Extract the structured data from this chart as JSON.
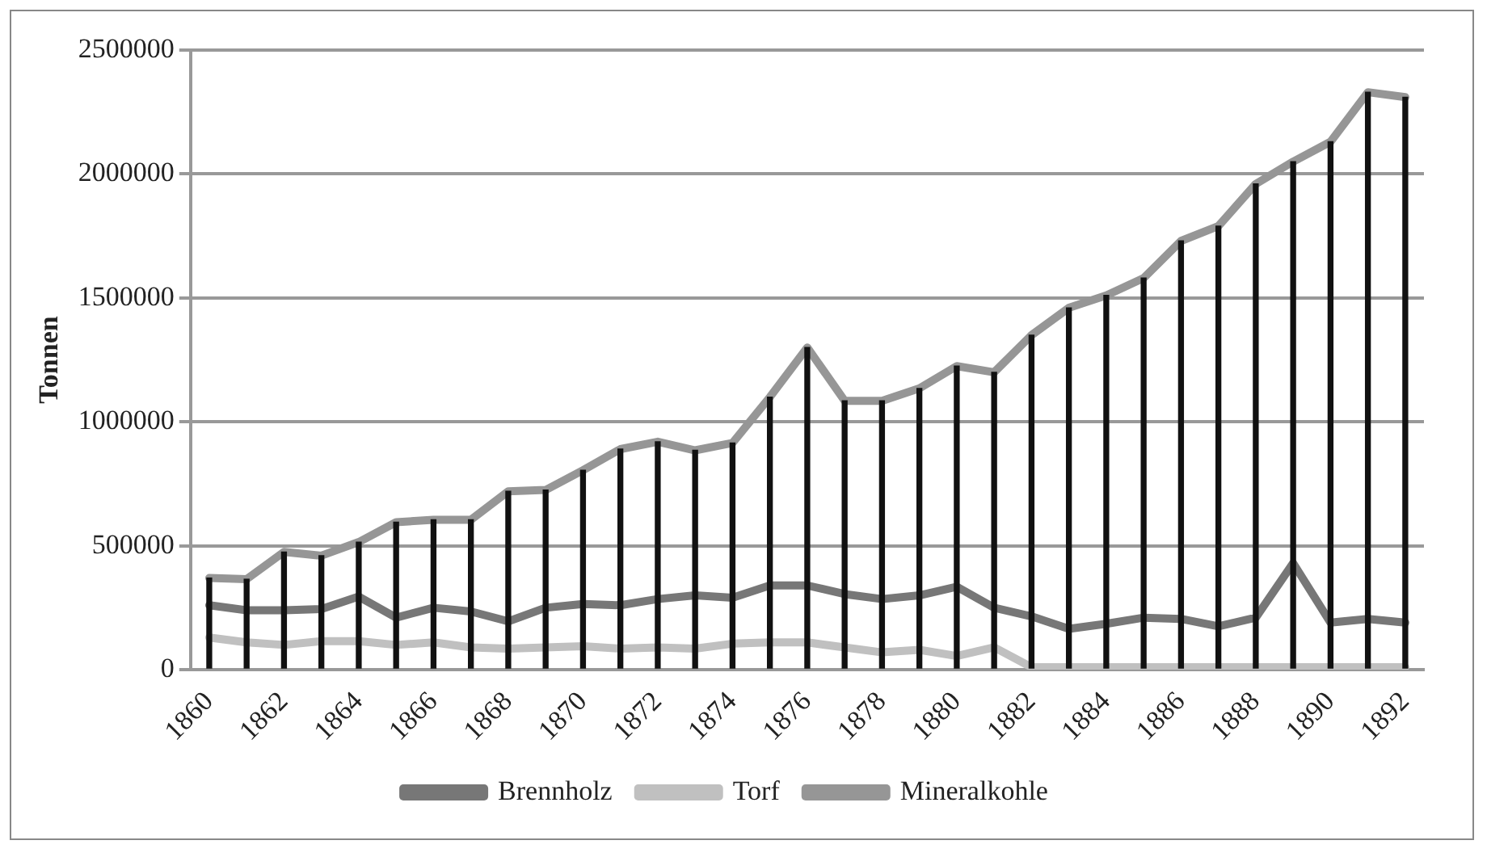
{
  "chart_data": {
    "type": "line",
    "ylabel": "Tonnen",
    "categories": [
      "1860",
      null,
      "1862",
      null,
      "1864",
      null,
      "1866",
      null,
      "1868",
      null,
      "1870",
      null,
      "1872",
      null,
      "1874",
      null,
      "1876",
      null,
      "1878",
      null,
      "1880",
      null,
      "1882",
      null,
      "1884",
      null,
      "1886",
      null,
      "1888",
      null,
      "1890",
      null,
      "1892"
    ],
    "series": [
      {
        "type": "bar",
        "color": "#111111",
        "values": [
          370000,
          365000,
          475000,
          460000,
          515000,
          595000,
          605000,
          605000,
          720000,
          725000,
          805000,
          890000,
          920000,
          885000,
          915000,
          1100000,
          1300000,
          1085000,
          1085000,
          1135000,
          1225000,
          1200000,
          1350000,
          1460000,
          1510000,
          1580000,
          1730000,
          1790000,
          1960000,
          2050000,
          2130000,
          2330000,
          2310000
        ]
      },
      {
        "name": "Brennholz",
        "color": "#777777",
        "values": [
          260000,
          240000,
          240000,
          245000,
          295000,
          210000,
          250000,
          235000,
          195000,
          250000,
          265000,
          260000,
          285000,
          300000,
          290000,
          340000,
          340000,
          305000,
          285000,
          300000,
          335000,
          250000,
          215000,
          165000,
          185000,
          210000,
          205000,
          175000,
          210000,
          430000,
          190000,
          205000,
          190000
        ]
      },
      {
        "name": "Torf",
        "color": "#c0c0c0",
        "values": [
          130000,
          110000,
          100000,
          115000,
          115000,
          100000,
          110000,
          90000,
          85000,
          90000,
          95000,
          85000,
          90000,
          85000,
          105000,
          110000,
          110000,
          90000,
          70000,
          80000,
          55000,
          90000,
          10000,
          10000,
          10000,
          10000,
          10000,
          10000,
          10000,
          10000,
          10000,
          10000,
          10000
        ]
      },
      {
        "name": "Mineralkohle",
        "color": "#969696",
        "values": [
          370000,
          365000,
          475000,
          460000,
          515000,
          595000,
          605000,
          605000,
          720000,
          725000,
          805000,
          890000,
          920000,
          885000,
          915000,
          1100000,
          1300000,
          1085000,
          1085000,
          1135000,
          1225000,
          1200000,
          1350000,
          1460000,
          1510000,
          1580000,
          1730000,
          1790000,
          1960000,
          2050000,
          2130000,
          2330000,
          2310000
        ]
      }
    ],
    "ylim": [
      0,
      2500000
    ],
    "yticks": [
      0,
      500000,
      1000000,
      1500000,
      2000000,
      2500000
    ],
    "grid": "y",
    "legend": "bottom",
    "marker": "none",
    "line_style": "solid"
  }
}
